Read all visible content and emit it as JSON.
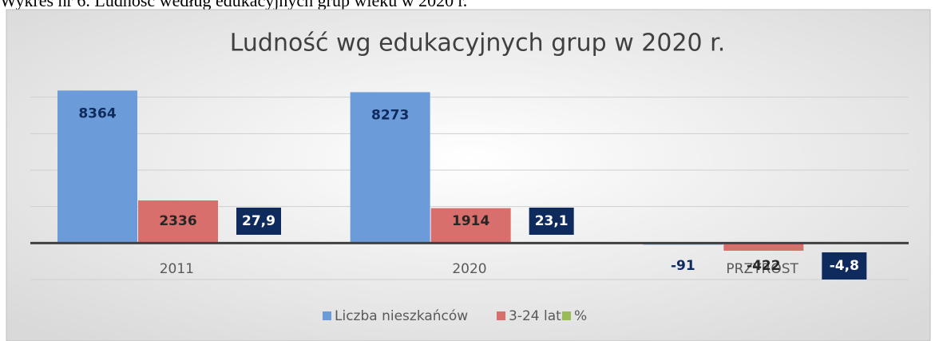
{
  "caption": "Wykres nr 6. Ludność według edukacyjnych grup wieku w 2020 r.",
  "chart_data": {
    "type": "bar",
    "title": "Ludność wg edukacyjnych grup w 2020 r.",
    "categories": [
      "2011",
      "2020",
      "PRZYROST"
    ],
    "series": [
      {
        "name": "Liczba nieszkańców",
        "color": "#6b9bd9",
        "values": [
          8364,
          8273,
          -91
        ]
      },
      {
        "name": "3-24 lata",
        "color": "#d96f6c",
        "values": [
          2336,
          1914,
          -422
        ]
      },
      {
        "name": "%",
        "color": "#9bbb59",
        "values": [
          27.9,
          23.1,
          -4.8
        ],
        "value_labels": [
          "27,9",
          "23,1",
          "-4,8"
        ]
      }
    ],
    "ylim": [
      -2000,
      10000
    ],
    "yticks": [
      -2000,
      0,
      2000,
      4000,
      6000,
      8000
    ],
    "grid": true,
    "legend": "bottom"
  }
}
